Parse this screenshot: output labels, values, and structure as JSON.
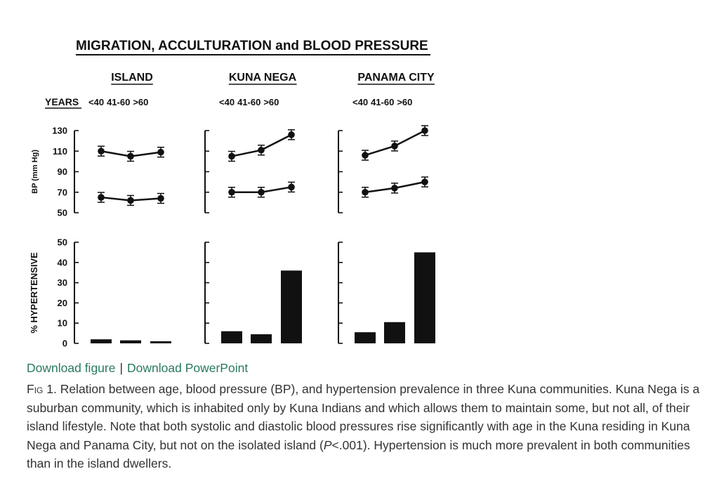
{
  "figure": {
    "title": "MIGRATION, ACCULTURATION and BLOOD PRESSURE",
    "years_label": "YEARS",
    "age_groups": [
      "<40",
      "41-60",
      ">60"
    ],
    "colors": {
      "ink": "#111111"
    }
  },
  "chart_data": [
    {
      "type": "line",
      "ylabel": "BP (mm Hg)",
      "ylim": [
        50,
        130
      ],
      "yticks": [
        130,
        110,
        90,
        70,
        50
      ],
      "panels": [
        {
          "name": "ISLAND",
          "categories": [
            "<40",
            "41-60",
            ">60"
          ],
          "series": [
            {
              "values": [
                110,
                105,
                109
              ]
            },
            {
              "values": [
                65,
                62,
                64
              ]
            }
          ]
        },
        {
          "name": "KUNA NEGA",
          "categories": [
            "<40",
            "41-60",
            ">60"
          ],
          "series": [
            {
              "values": [
                105,
                111,
                126
              ]
            },
            {
              "values": [
                70,
                70,
                75
              ]
            }
          ]
        },
        {
          "name": "PANAMA CITY",
          "categories": [
            "<40",
            "41-60",
            ">60"
          ],
          "series": [
            {
              "values": [
                106,
                115,
                130
              ]
            },
            {
              "values": [
                70,
                74,
                80
              ]
            }
          ]
        }
      ]
    },
    {
      "type": "bar",
      "ylabel": "% HYPERTENSIVE",
      "ylim": [
        0,
        50
      ],
      "yticks": [
        50,
        40,
        30,
        20,
        10,
        0
      ],
      "panels": [
        {
          "name": "ISLAND",
          "categories": [
            "<40",
            "41-60",
            ">60"
          ],
          "values": [
            2,
            1.5,
            0.5
          ]
        },
        {
          "name": "KUNA NEGA",
          "categories": [
            "<40",
            "41-60",
            ">60"
          ],
          "values": [
            6,
            4.5,
            36
          ]
        },
        {
          "name": "PANAMA CITY",
          "categories": [
            "<40",
            "41-60",
            ">60"
          ],
          "values": [
            5.5,
            10.5,
            45
          ]
        }
      ]
    }
  ],
  "links": {
    "download_figure": "Download figure",
    "separator": "|",
    "download_ppt": "Download PowerPoint"
  },
  "caption": {
    "label": "Fig",
    "number": " 1.",
    "text_1": " Relation between age, blood pressure (BP), and hypertension prevalence in three Kuna communities. Kuna Nega is a suburban community, which is inhabited only by Kuna Indians and which allows them to maintain some, but not all, of their island lifestyle. Note that both systolic and diastolic blood pressures rise significantly with age in the Kuna residing in Kuna Nega and Panama City, but not on the isolated island (",
    "p_symbol": "P",
    "text_2": "<.001). Hypertension is much more prevalent in both communities than in the island dwellers."
  }
}
